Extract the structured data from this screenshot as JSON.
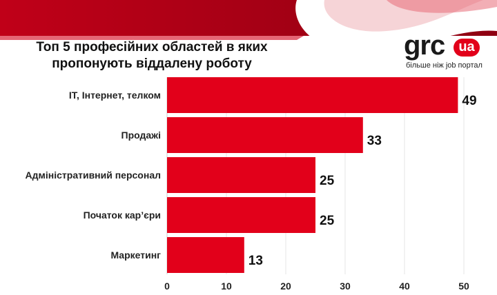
{
  "title_line1": "Топ 5 професійних областей в яких",
  "title_line2": "пропонують  віддалену роботу",
  "logo": {
    "grc": "grc",
    "ua": "ua",
    "tagline": "більше ніж job портал"
  },
  "colors": {
    "bar": "#e2001a",
    "accent": "#c8001a"
  },
  "chart_data": {
    "type": "bar",
    "orientation": "horizontal",
    "title": "Топ 5 професійних областей в яких пропонують  віддалену роботу",
    "categories": [
      "ІТ, Інтернет, телком",
      "Продажі",
      "Адміністративний персонал",
      "Початок кар’єри",
      "Маркетинг"
    ],
    "values": [
      49,
      33,
      25,
      25,
      13
    ],
    "xlim": [
      0,
      50
    ],
    "xticks": [
      0,
      10,
      20,
      30,
      40,
      50
    ],
    "grid": true
  }
}
